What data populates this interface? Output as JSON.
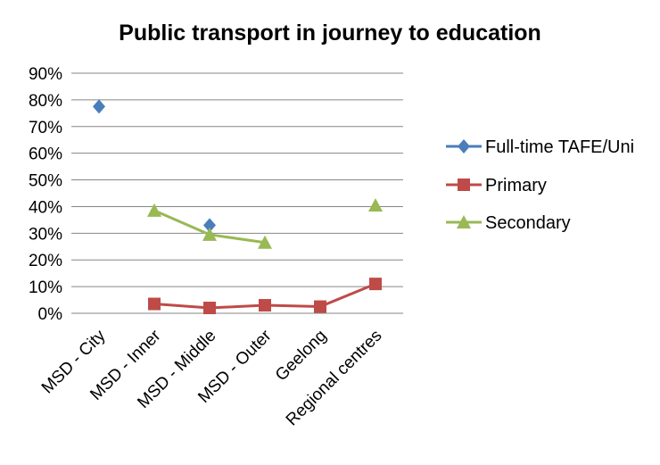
{
  "chart_data": {
    "type": "line",
    "title": "Public transport in journey to education",
    "xlabel": "",
    "ylabel": "",
    "categories": [
      "MSD - City",
      "MSD - Inner",
      "MSD - Middle",
      "MSD - Outer",
      "Geelong",
      "Regional centres"
    ],
    "ylim": [
      0,
      90
    ],
    "y_ticks": [
      "0%",
      "10%",
      "20%",
      "30%",
      "40%",
      "50%",
      "60%",
      "70%",
      "80%",
      "90%"
    ],
    "grid": true,
    "legend_position": "right",
    "series": [
      {
        "name": "Full-time TAFE/Uni",
        "marker": "diamond",
        "color": "#4a7ebb",
        "values": [
          77.5,
          null,
          33,
          null,
          null,
          null
        ]
      },
      {
        "name": "Primary",
        "marker": "square",
        "color": "#be4b48",
        "values": [
          null,
          3.5,
          2,
          3,
          2.5,
          11
        ]
      },
      {
        "name": "Secondary",
        "marker": "triangle",
        "color": "#98b954",
        "values": [
          null,
          38.5,
          29.5,
          26.5,
          null,
          40.5
        ]
      }
    ]
  }
}
